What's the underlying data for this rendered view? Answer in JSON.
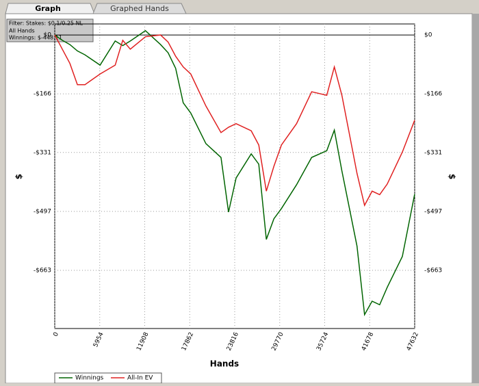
{
  "tabs": [
    "Graph",
    "Graphed Hands"
  ],
  "filter_box": [
    "Filter: Stakes: $0.1/0.25 NL",
    "All Hands",
    "Winnings: $-448.11"
  ],
  "chart_data": {
    "type": "line",
    "xlabel": "Hands",
    "ylabel": "$",
    "x": [
      0,
      1000,
      2000,
      3000,
      4000,
      6000,
      8000,
      9000,
      10000,
      12000,
      14000,
      15000,
      16000,
      17000,
      18000,
      20000,
      22000,
      23000,
      24000,
      26000,
      27000,
      28000,
      29000,
      30000,
      32000,
      34000,
      36000,
      37000,
      38000,
      40000,
      41000,
      42000,
      43000,
      44000,
      46000,
      47632
    ],
    "series": [
      {
        "name": "Winnings",
        "color": "#006400",
        "values": [
          0,
          -15,
          -27,
          -45,
          -56,
          -85,
          -17,
          -30,
          -17,
          12,
          -27,
          -50,
          -94,
          -191,
          -220,
          -306,
          -345,
          -499,
          -403,
          -335,
          -364,
          -576,
          -518,
          -489,
          -422,
          -345,
          -326,
          -268,
          -383,
          -595,
          -788,
          -750,
          -760,
          -711,
          -624,
          -448.11
        ]
      },
      {
        "name": "All-In EV",
        "color": "#e02020",
        "values": [
          0,
          -40,
          -80,
          -140,
          -140,
          -110,
          -85,
          -15,
          -40,
          -5,
          0,
          -20,
          -60,
          -90,
          -110,
          -200,
          -275,
          -260,
          -250,
          -270,
          -310,
          -440,
          -370,
          -310,
          -250,
          -160,
          -170,
          -90,
          -170,
          -390,
          -480,
          -440,
          -450,
          -420,
          -330,
          -240
        ]
      }
    ],
    "xlim": [
      0,
      47632
    ],
    "xticks": [
      0,
      5954,
      11908,
      17862,
      23816,
      29770,
      35724,
      41678,
      47632
    ],
    "ylim": [
      -827,
      31
    ],
    "yticks": [
      {
        "value": 0,
        "label": "$0"
      },
      {
        "value": -166,
        "label": "-$166"
      },
      {
        "value": -331,
        "label": "-$331"
      },
      {
        "value": -497,
        "label": "-$497"
      },
      {
        "value": -663,
        "label": "-$663"
      }
    ],
    "grid": true
  }
}
